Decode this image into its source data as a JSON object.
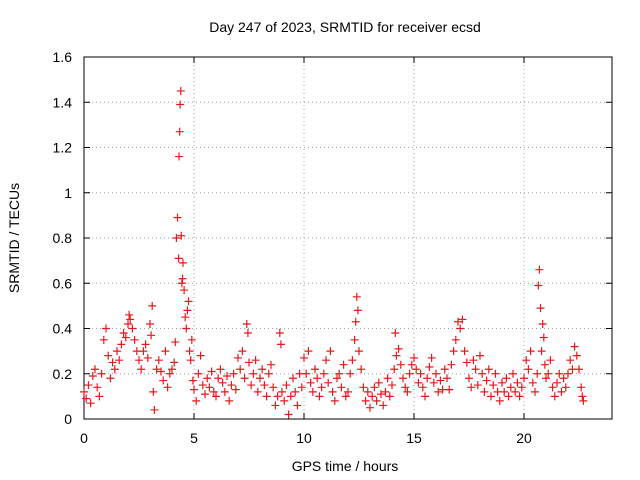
{
  "chart_data": {
    "type": "scatter",
    "title": "Day 247 of 2023, SRMTID for receiver ecsd",
    "xlabel": "GPS time / hours",
    "ylabel": "SRMTID / TECUs",
    "xlim": [
      0,
      24
    ],
    "ylim": [
      0,
      1.6
    ],
    "x_ticks": [
      0,
      5,
      10,
      15,
      20
    ],
    "x_tick_labels": [
      "0",
      "5",
      "10",
      "15",
      "20"
    ],
    "y_ticks": [
      0,
      0.2,
      0.4,
      0.6,
      0.8,
      1.0,
      1.2,
      1.4,
      1.6
    ],
    "y_tick_labels": [
      "0",
      "0.2",
      "0.4",
      "0.6",
      "0.8",
      "1",
      "1.2",
      "1.4",
      "1.6"
    ],
    "grid": true,
    "marker": "+",
    "marker_color": "#e8191e",
    "series": [
      {
        "name": "SRMTID",
        "points": [
          [
            0.0,
            0.12
          ],
          [
            0.1,
            0.09
          ],
          [
            0.2,
            0.15
          ],
          [
            0.3,
            0.07
          ],
          [
            0.4,
            0.19
          ],
          [
            0.5,
            0.22
          ],
          [
            0.6,
            0.14
          ],
          [
            0.7,
            0.1
          ],
          [
            0.8,
            0.2
          ],
          [
            0.9,
            0.35
          ],
          [
            1.0,
            0.4
          ],
          [
            1.1,
            0.28
          ],
          [
            1.2,
            0.18
          ],
          [
            1.3,
            0.25
          ],
          [
            1.4,
            0.22
          ],
          [
            1.5,
            0.3
          ],
          [
            1.6,
            0.26
          ],
          [
            1.7,
            0.33
          ],
          [
            1.8,
            0.38
          ],
          [
            1.9,
            0.36
          ],
          [
            2.0,
            0.42
          ],
          [
            2.05,
            0.46
          ],
          [
            2.1,
            0.44
          ],
          [
            2.2,
            0.4
          ],
          [
            2.3,
            0.35
          ],
          [
            2.4,
            0.3
          ],
          [
            2.5,
            0.26
          ],
          [
            2.6,
            0.22
          ],
          [
            2.7,
            0.3
          ],
          [
            2.8,
            0.33
          ],
          [
            2.9,
            0.27
          ],
          [
            3.0,
            0.42
          ],
          [
            3.05,
            0.37
          ],
          [
            3.1,
            0.5
          ],
          [
            3.15,
            0.12
          ],
          [
            3.2,
            0.04
          ],
          [
            3.3,
            0.22
          ],
          [
            3.4,
            0.26
          ],
          [
            3.5,
            0.21
          ],
          [
            3.6,
            0.17
          ],
          [
            3.7,
            0.3
          ],
          [
            3.8,
            0.14
          ],
          [
            3.9,
            0.2
          ],
          [
            4.0,
            0.22
          ],
          [
            4.1,
            0.25
          ],
          [
            4.15,
            0.34
          ],
          [
            4.2,
            0.8
          ],
          [
            4.25,
            0.89
          ],
          [
            4.3,
            0.71
          ],
          [
            4.32,
            1.16
          ],
          [
            4.35,
            1.27
          ],
          [
            4.37,
            1.39
          ],
          [
            4.4,
            1.45
          ],
          [
            4.42,
            0.81
          ],
          [
            4.45,
            0.6
          ],
          [
            4.48,
            0.62
          ],
          [
            4.5,
            0.69
          ],
          [
            4.55,
            0.57
          ],
          [
            4.6,
            0.45
          ],
          [
            4.65,
            0.4
          ],
          [
            4.7,
            0.48
          ],
          [
            4.75,
            0.52
          ],
          [
            4.8,
            0.3
          ],
          [
            4.85,
            0.26
          ],
          [
            4.9,
            0.35
          ],
          [
            4.95,
            0.17
          ],
          [
            5.0,
            0.13
          ],
          [
            5.1,
            0.08
          ],
          [
            5.2,
            0.2
          ],
          [
            5.3,
            0.28
          ],
          [
            5.4,
            0.15
          ],
          [
            5.5,
            0.11
          ],
          [
            5.6,
            0.18
          ],
          [
            5.7,
            0.14
          ],
          [
            5.8,
            0.21
          ],
          [
            5.9,
            0.12
          ],
          [
            6.0,
            0.1
          ],
          [
            6.1,
            0.18
          ],
          [
            6.2,
            0.22
          ],
          [
            6.3,
            0.16
          ],
          [
            6.4,
            0.12
          ],
          [
            6.5,
            0.19
          ],
          [
            6.6,
            0.08
          ],
          [
            6.7,
            0.15
          ],
          [
            6.8,
            0.2
          ],
          [
            6.9,
            0.13
          ],
          [
            7.0,
            0.27
          ],
          [
            7.1,
            0.22
          ],
          [
            7.2,
            0.3
          ],
          [
            7.3,
            0.18
          ],
          [
            7.4,
            0.42
          ],
          [
            7.45,
            0.38
          ],
          [
            7.5,
            0.25
          ],
          [
            7.6,
            0.15
          ],
          [
            7.7,
            0.2
          ],
          [
            7.8,
            0.26
          ],
          [
            7.9,
            0.12
          ],
          [
            8.0,
            0.18
          ],
          [
            8.1,
            0.22
          ],
          [
            8.2,
            0.15
          ],
          [
            8.3,
            0.1
          ],
          [
            8.4,
            0.2
          ],
          [
            8.5,
            0.24
          ],
          [
            8.6,
            0.14
          ],
          [
            8.7,
            0.06
          ],
          [
            8.8,
            0.1
          ],
          [
            8.9,
            0.38
          ],
          [
            8.95,
            0.33
          ],
          [
            9.0,
            0.12
          ],
          [
            9.1,
            0.08
          ],
          [
            9.2,
            0.15
          ],
          [
            9.3,
            0.02
          ],
          [
            9.4,
            0.1
          ],
          [
            9.5,
            0.18
          ],
          [
            9.6,
            0.12
          ],
          [
            9.7,
            0.06
          ],
          [
            9.8,
            0.2
          ],
          [
            9.9,
            0.14
          ],
          [
            10.0,
            0.27
          ],
          [
            10.1,
            0.2
          ],
          [
            10.2,
            0.3
          ],
          [
            10.3,
            0.16
          ],
          [
            10.4,
            0.12
          ],
          [
            10.5,
            0.22
          ],
          [
            10.6,
            0.18
          ],
          [
            10.7,
            0.1
          ],
          [
            10.8,
            0.14
          ],
          [
            10.9,
            0.2
          ],
          [
            11.0,
            0.26
          ],
          [
            11.1,
            0.16
          ],
          [
            11.2,
            0.3
          ],
          [
            11.3,
            0.12
          ],
          [
            11.4,
            0.08
          ],
          [
            11.5,
            0.18
          ],
          [
            11.6,
            0.2
          ],
          [
            11.7,
            0.14
          ],
          [
            11.8,
            0.24
          ],
          [
            11.9,
            0.1
          ],
          [
            12.0,
            0.12
          ],
          [
            12.1,
            0.2
          ],
          [
            12.2,
            0.26
          ],
          [
            12.3,
            0.35
          ],
          [
            12.35,
            0.43
          ],
          [
            12.4,
            0.54
          ],
          [
            12.45,
            0.48
          ],
          [
            12.5,
            0.3
          ],
          [
            12.6,
            0.22
          ],
          [
            12.7,
            0.14
          ],
          [
            12.8,
            0.08
          ],
          [
            12.9,
            0.12
          ],
          [
            13.0,
            0.05
          ],
          [
            13.1,
            0.1
          ],
          [
            13.2,
            0.14
          ],
          [
            13.3,
            0.08
          ],
          [
            13.4,
            0.16
          ],
          [
            13.5,
            0.11
          ],
          [
            13.6,
            0.06
          ],
          [
            13.7,
            0.12
          ],
          [
            13.8,
            0.18
          ],
          [
            13.9,
            0.1
          ],
          [
            14.0,
            0.15
          ],
          [
            14.1,
            0.22
          ],
          [
            14.15,
            0.38
          ],
          [
            14.2,
            0.28
          ],
          [
            14.3,
            0.31
          ],
          [
            14.4,
            0.24
          ],
          [
            14.5,
            0.18
          ],
          [
            14.6,
            0.14
          ],
          [
            14.7,
            0.12
          ],
          [
            14.8,
            0.2
          ],
          [
            14.9,
            0.24
          ],
          [
            15.0,
            0.27
          ],
          [
            15.1,
            0.22
          ],
          [
            15.2,
            0.16
          ],
          [
            15.3,
            0.2
          ],
          [
            15.4,
            0.14
          ],
          [
            15.5,
            0.1
          ],
          [
            15.6,
            0.18
          ],
          [
            15.7,
            0.23
          ],
          [
            15.8,
            0.27
          ],
          [
            15.9,
            0.16
          ],
          [
            16.0,
            0.2
          ],
          [
            16.1,
            0.12
          ],
          [
            16.2,
            0.17
          ],
          [
            16.3,
            0.13
          ],
          [
            16.4,
            0.22
          ],
          [
            16.5,
            0.18
          ],
          [
            16.6,
            0.13
          ],
          [
            16.7,
            0.24
          ],
          [
            16.8,
            0.3
          ],
          [
            16.9,
            0.35
          ],
          [
            17.0,
            0.43
          ],
          [
            17.1,
            0.4
          ],
          [
            17.2,
            0.44
          ],
          [
            17.3,
            0.3
          ],
          [
            17.4,
            0.25
          ],
          [
            17.5,
            0.18
          ],
          [
            17.6,
            0.14
          ],
          [
            17.7,
            0.26
          ],
          [
            17.8,
            0.22
          ],
          [
            17.9,
            0.15
          ],
          [
            18.0,
            0.28
          ],
          [
            18.1,
            0.2
          ],
          [
            18.2,
            0.12
          ],
          [
            18.3,
            0.17
          ],
          [
            18.4,
            0.22
          ],
          [
            18.5,
            0.1
          ],
          [
            18.6,
            0.15
          ],
          [
            18.7,
            0.2
          ],
          [
            18.8,
            0.12
          ],
          [
            18.9,
            0.08
          ],
          [
            19.0,
            0.16
          ],
          [
            19.1,
            0.12
          ],
          [
            19.2,
            0.18
          ],
          [
            19.3,
            0.1
          ],
          [
            19.4,
            0.14
          ],
          [
            19.5,
            0.2
          ],
          [
            19.6,
            0.12
          ],
          [
            19.7,
            0.16
          ],
          [
            19.8,
            0.1
          ],
          [
            19.9,
            0.14
          ],
          [
            20.0,
            0.18
          ],
          [
            20.1,
            0.26
          ],
          [
            20.2,
            0.22
          ],
          [
            20.3,
            0.3
          ],
          [
            20.4,
            0.16
          ],
          [
            20.5,
            0.12
          ],
          [
            20.6,
            0.2
          ],
          [
            20.65,
            0.59
          ],
          [
            20.7,
            0.66
          ],
          [
            20.75,
            0.49
          ],
          [
            20.8,
            0.3
          ],
          [
            20.85,
            0.42
          ],
          [
            20.9,
            0.36
          ],
          [
            20.95,
            0.24
          ],
          [
            21.0,
            0.18
          ],
          [
            21.1,
            0.2
          ],
          [
            21.2,
            0.26
          ],
          [
            21.3,
            0.14
          ],
          [
            21.4,
            0.1
          ],
          [
            21.5,
            0.16
          ],
          [
            21.6,
            0.2
          ],
          [
            21.7,
            0.12
          ],
          [
            21.8,
            0.18
          ],
          [
            21.9,
            0.14
          ],
          [
            22.0,
            0.2
          ],
          [
            22.1,
            0.26
          ],
          [
            22.2,
            0.22
          ],
          [
            22.3,
            0.32
          ],
          [
            22.4,
            0.28
          ],
          [
            22.5,
            0.22
          ],
          [
            22.6,
            0.14
          ],
          [
            22.65,
            0.1
          ],
          [
            22.7,
            0.08
          ]
        ]
      }
    ]
  }
}
